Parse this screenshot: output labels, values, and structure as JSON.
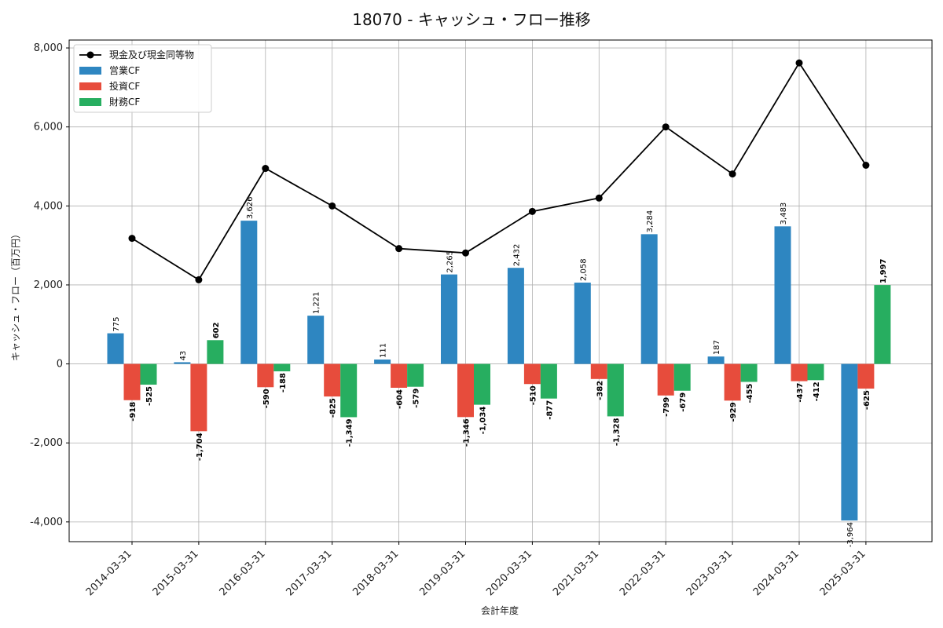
{
  "chart_data": {
    "type": "bar",
    "title": "18070 - キャッシュ・フロー推移",
    "xlabel": "会計年度",
    "ylabel": "キャッシュ・フロー（百万円）",
    "ylim": [
      -4500,
      8200
    ],
    "yticks": [
      -4000,
      -2000,
      0,
      2000,
      4000,
      6000,
      8000
    ],
    "ytick_labels": [
      "-4,000",
      "-2,000",
      "0",
      "2,000",
      "4,000",
      "6,000",
      "8,000"
    ],
    "grid": true,
    "legend_position": "top-left",
    "categories": [
      "2014-03-31",
      "2015-03-31",
      "2016-03-31",
      "2017-03-31",
      "2018-03-31",
      "2019-03-31",
      "2020-03-31",
      "2021-03-31",
      "2022-03-31",
      "2023-03-31",
      "2024-03-31",
      "2025-03-31"
    ],
    "series": [
      {
        "name": "営業CF",
        "kind": "bar",
        "color": "#2e86c1",
        "values": [
          775,
          43,
          3626,
          1221,
          111,
          2265,
          2432,
          2058,
          3284,
          187,
          3483,
          -3964
        ],
        "labels": [
          "775",
          "43",
          "3,626",
          "1,221",
          "111",
          "2,265",
          "2,432",
          "2,058",
          "3,284",
          "187",
          "3,483",
          "-3,964"
        ]
      },
      {
        "name": "投資CF",
        "kind": "bar",
        "color": "#e74c3c",
        "values": [
          -918,
          -1704,
          -590,
          -825,
          -604,
          -1346,
          -510,
          -382,
          -799,
          -929,
          -437,
          -625
        ],
        "labels": [
          "-918",
          "-1,704",
          "-590",
          "-825",
          "-604",
          "-1,346",
          "-510",
          "-382",
          "-799",
          "-929",
          "-437",
          "-625"
        ]
      },
      {
        "name": "財務CF",
        "kind": "bar",
        "color": "#27ae60",
        "values": [
          -525,
          602,
          -188,
          -1349,
          -579,
          -1034,
          -877,
          -1328,
          -679,
          -455,
          -412,
          1997
        ],
        "labels": [
          "-525",
          "602",
          "-188",
          "-1,349",
          "-579",
          "-1,034",
          "-877",
          "-1,328",
          "-679",
          "-455",
          "-412",
          "1,997"
        ]
      },
      {
        "name": "現金及び現金同等物",
        "kind": "line",
        "color": "#000000",
        "values": [
          3180,
          2130,
          4950,
          4000,
          2920,
          2810,
          3860,
          4200,
          6000,
          4810,
          7620,
          5030
        ]
      }
    ]
  }
}
